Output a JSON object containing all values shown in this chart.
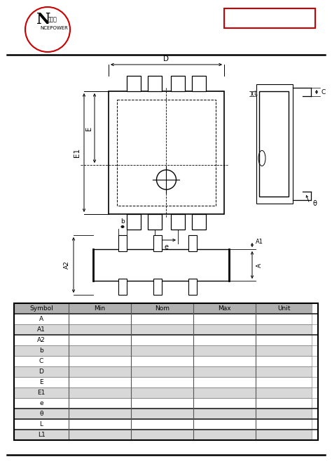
{
  "bg_color": "#ffffff",
  "logo_circle_color": "#cc0000",
  "red_box_color": "#cc0000",
  "table_rows": [
    [
      "Symbol",
      "Min",
      "Nom",
      "Max",
      "Unit"
    ],
    [
      "A",
      "",
      "",
      "",
      ""
    ],
    [
      "A1",
      "",
      "",
      "",
      ""
    ],
    [
      "A2",
      "",
      "",
      "",
      ""
    ],
    [
      "b",
      "",
      "",
      "",
      ""
    ],
    [
      "C",
      "",
      "",
      "",
      ""
    ],
    [
      "D",
      "",
      "",
      "",
      ""
    ],
    [
      "E",
      "",
      "",
      "",
      ""
    ],
    [
      "E1",
      "",
      "",
      "",
      ""
    ],
    [
      "e",
      "",
      "",
      "",
      ""
    ],
    [
      "θ",
      "",
      "",
      "",
      ""
    ],
    [
      "L",
      "",
      "",
      "",
      ""
    ],
    [
      "L1",
      "",
      "",
      "",
      ""
    ]
  ],
  "header_gray": "#b0b0b0",
  "row_gray": "#d8d8d8",
  "row_white": "#ffffff",
  "thick_row_color": "#404040",
  "thin_row_color": "#888888"
}
